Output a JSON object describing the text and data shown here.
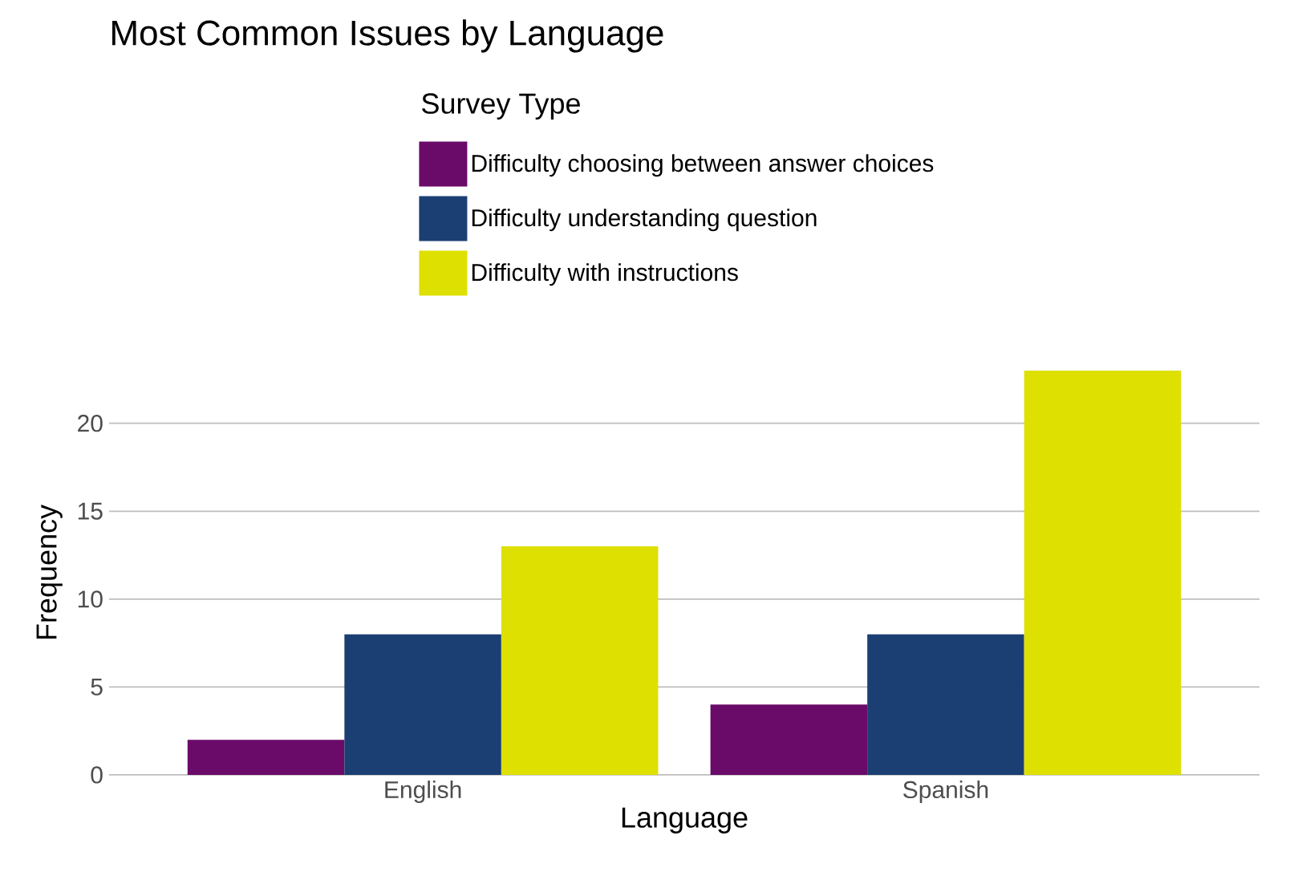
{
  "chart_data": {
    "type": "bar",
    "title": "Most Common Issues by Language",
    "xlabel": "Language",
    "ylabel": "Frequency",
    "legend_title": "Survey Type",
    "categories": [
      "English",
      "Spanish"
    ],
    "series": [
      {
        "name": "Difficulty choosing between answer choices",
        "color": "#6a0a69",
        "values": [
          2,
          4
        ]
      },
      {
        "name": "Difficulty understanding question",
        "color": "#1b3f73",
        "values": [
          8,
          8
        ]
      },
      {
        "name": "Difficulty with instructions",
        "color": "#dde000",
        "values": [
          13,
          23
        ]
      }
    ],
    "ylim": [
      0,
      23
    ],
    "yticks": [
      0,
      5,
      10,
      15,
      20
    ],
    "grid": "y",
    "legend": "top"
  }
}
